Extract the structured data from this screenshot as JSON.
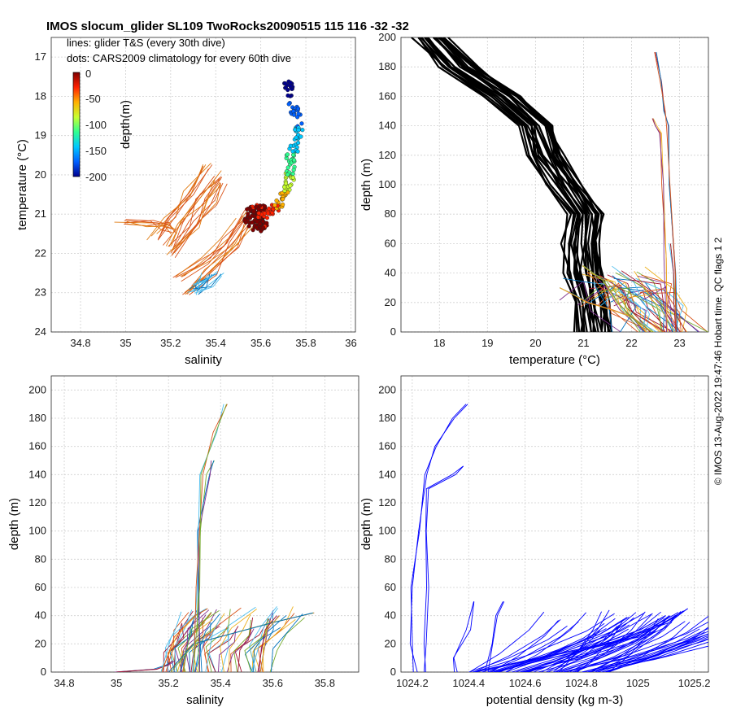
{
  "title": "IMOS slocum_glider SL109 TwoRocks20090515 115  116  -32  -32",
  "copyright": "© IMOS 13-Aug-2022 19:47:46 Hobart time. QC flags 1  2",
  "legend": {
    "line1": "lines: glider T&S (every 30th dive)",
    "line2": "dots: CARS2009 climatology for every 60th dive"
  },
  "colorbar": {
    "label": "depth(m)",
    "ticks": [
      "0",
      "-50",
      "-100",
      "-150",
      "-200"
    ],
    "colors": [
      "#7f0000",
      "#ff2000",
      "#ffb000",
      "#c8ff30",
      "#30ff90",
      "#00c8ff",
      "#0060ff",
      "#00008f"
    ]
  },
  "colors": {
    "series": [
      "#0072bd",
      "#d95319",
      "#edb120",
      "#7e2f8e",
      "#77ac30",
      "#4dbeee",
      "#a2142f"
    ],
    "climatology_profile": "#000000",
    "density_profile": "#0000ff"
  },
  "chart_data": [
    {
      "id": "ts",
      "type": "scatter",
      "xlabel": "salinity",
      "ylabel": "temperature (°C)",
      "xlim": [
        34.67,
        36.02
      ],
      "ylim": [
        16.5,
        24
      ],
      "xticks": [
        34.8,
        35,
        35.2,
        35.4,
        35.6,
        35.8,
        36
      ],
      "yticks": [
        17,
        18,
        19,
        20,
        21,
        22,
        23,
        24
      ],
      "grid": true,
      "climatology_points": [
        {
          "s": 35.56,
          "t": 21.15,
          "d": -5
        },
        {
          "s": 35.6,
          "t": 21.05,
          "d": -15
        },
        {
          "s": 35.65,
          "t": 20.95,
          "d": -30
        },
        {
          "s": 35.68,
          "t": 20.75,
          "d": -50
        },
        {
          "s": 35.72,
          "t": 20.35,
          "d": -75
        },
        {
          "s": 35.73,
          "t": 20.0,
          "d": -100
        },
        {
          "s": 35.73,
          "t": 19.6,
          "d": -120
        },
        {
          "s": 35.76,
          "t": 19.1,
          "d": -140
        },
        {
          "s": 35.77,
          "t": 18.7,
          "d": -160
        },
        {
          "s": 35.74,
          "t": 18.2,
          "d": -180
        },
        {
          "s": 35.72,
          "t": 17.6,
          "d": -200
        }
      ],
      "glider_lines": [
        {
          "s": [
            34.98,
            35.12,
            35.18,
            35.22
          ],
          "t": [
            21.15,
            21.22,
            21.3,
            21.45
          ]
        },
        {
          "s": [
            35.12,
            35.2,
            35.28,
            35.36
          ],
          "t": [
            21.6,
            21.1,
            20.5,
            19.8
          ]
        },
        {
          "s": [
            35.18,
            35.26,
            35.34,
            35.4
          ],
          "t": [
            21.9,
            21.2,
            20.6,
            20.0
          ]
        },
        {
          "s": [
            35.2,
            35.3,
            35.38,
            35.44
          ],
          "t": [
            22.0,
            21.3,
            20.7,
            20.2
          ]
        },
        {
          "s": [
            35.23,
            35.35,
            35.45,
            35.52
          ],
          "t": [
            22.6,
            22.2,
            21.7,
            21.0
          ]
        },
        {
          "s": [
            35.27,
            35.38,
            35.48,
            35.55
          ],
          "t": [
            22.95,
            22.5,
            21.8,
            21.2
          ]
        },
        {
          "s": [
            35.3,
            35.34,
            35.36
          ],
          "t": [
            22.95,
            22.8,
            22.6
          ]
        },
        {
          "s": [
            35.3,
            35.36,
            35.41
          ],
          "t": [
            22.9,
            22.8,
            22.55
          ]
        }
      ]
    },
    {
      "id": "temp",
      "type": "line",
      "xlabel": "temperature (°C)",
      "ylabel": "depth (m)",
      "xlim": [
        17.2,
        23.6
      ],
      "ylim": [
        200,
        0
      ],
      "xticks": [
        18,
        19,
        20,
        21,
        22,
        23
      ],
      "yticks": [
        0,
        20,
        40,
        60,
        80,
        100,
        120,
        140,
        160,
        180,
        200
      ],
      "grid": true,
      "climatology_profile": {
        "depth": [
          0,
          20,
          40,
          60,
          80,
          100,
          120,
          140,
          160,
          180,
          200
        ],
        "temp": [
          21.2,
          21.15,
          21.0,
          20.95,
          21.0,
          20.6,
          20.2,
          20.0,
          19.3,
          18.4,
          17.8
        ]
      },
      "glider_profiles": [
        {
          "depth": [
            30,
            25,
            20,
            15,
            10,
            0
          ],
          "temp": [
            20.5,
            20.8,
            21.1,
            21.6,
            22.0,
            22.3
          ]
        },
        {
          "depth": [
            45,
            35,
            20,
            10,
            0
          ],
          "temp": [
            21.0,
            21.4,
            21.7,
            22.0,
            22.4
          ]
        },
        {
          "depth": [
            60,
            40,
            20,
            0
          ],
          "temp": [
            22.8,
            22.85,
            22.9,
            22.95
          ]
        },
        {
          "depth": [
            190,
            170,
            150,
            140,
            100,
            40,
            0
          ],
          "temp": [
            22.5,
            22.6,
            22.7,
            22.75,
            22.8,
            22.9,
            22.95
          ]
        },
        {
          "depth": [
            145,
            140,
            135,
            100,
            50,
            0
          ],
          "temp": [
            22.45,
            22.5,
            22.6,
            22.65,
            22.7,
            22.75
          ]
        }
      ]
    },
    {
      "id": "sal",
      "type": "line",
      "xlabel": "salinity",
      "ylabel": "depth (m)",
      "xlim": [
        34.75,
        35.93
      ],
      "ylim": [
        210,
        0
      ],
      "xticks": [
        34.8,
        35,
        35.2,
        35.4,
        35.6,
        35.8
      ],
      "yticks": [
        0,
        20,
        40,
        60,
        80,
        100,
        120,
        140,
        160,
        180,
        200
      ],
      "grid": true,
      "glider_profiles": [
        {
          "depth": [
            0,
            2,
            5,
            8
          ],
          "sal": [
            35.0,
            35.15,
            35.2,
            35.22
          ]
        },
        {
          "depth": [
            0,
            20,
            35,
            42
          ],
          "sal": [
            35.2,
            35.3,
            35.6,
            35.75
          ]
        },
        {
          "depth": [
            0,
            25,
            40,
            45
          ],
          "sal": [
            35.18,
            35.22,
            35.3,
            35.35
          ]
        },
        {
          "depth": [
            0,
            30,
            40
          ],
          "sal": [
            35.55,
            35.58,
            35.62
          ]
        },
        {
          "depth": [
            0,
            40,
            100,
            140,
            150
          ],
          "sal": [
            35.32,
            35.32,
            35.32,
            35.35,
            35.37
          ]
        },
        {
          "depth": [
            0,
            60,
            140,
            170,
            190
          ],
          "sal": [
            35.3,
            35.31,
            35.33,
            35.38,
            35.42
          ]
        }
      ]
    },
    {
      "id": "dens",
      "type": "line",
      "xlabel": "potential density (kg m-3)",
      "ylabel": "depth (m)",
      "xlim": [
        1024.16,
        1025.25
      ],
      "ylim": [
        210,
        0
      ],
      "xticks": [
        1024.2,
        1024.4,
        1024.6,
        1024.8,
        1025,
        1025.2
      ],
      "yticks": [
        0,
        20,
        40,
        60,
        80,
        100,
        120,
        140,
        160,
        180,
        200
      ],
      "grid": true,
      "glider_profiles": [
        {
          "depth": [
            0,
            20,
            60,
            100,
            140,
            160,
            180,
            190
          ],
          "dens": [
            1024.21,
            1024.2,
            1024.2,
            1024.22,
            1024.25,
            1024.28,
            1024.35,
            1024.4
          ]
        },
        {
          "depth": [
            0,
            20,
            60,
            100,
            130,
            140,
            146
          ],
          "dens": [
            1024.25,
            1024.25,
            1024.25,
            1024.25,
            1024.26,
            1024.35,
            1024.38
          ]
        },
        {
          "depth": [
            0,
            20,
            40,
            50
          ],
          "dens": [
            1024.46,
            1024.48,
            1024.5,
            1024.52
          ]
        },
        {
          "depth": [
            0,
            15,
            30,
            40
          ],
          "dens": [
            1024.6,
            1024.8,
            1025.0,
            1025.1
          ]
        },
        {
          "depth": [
            0,
            20,
            35,
            45
          ],
          "dens": [
            1024.5,
            1024.9,
            1025.1,
            1025.18
          ]
        },
        {
          "depth": [
            0,
            10,
            30,
            50
          ],
          "dens": [
            1024.35,
            1024.35,
            1024.4,
            1024.42
          ]
        },
        {
          "depth": [
            0,
            25,
            40
          ],
          "dens": [
            1024.42,
            1025.0,
            1025.12
          ]
        }
      ]
    }
  ]
}
